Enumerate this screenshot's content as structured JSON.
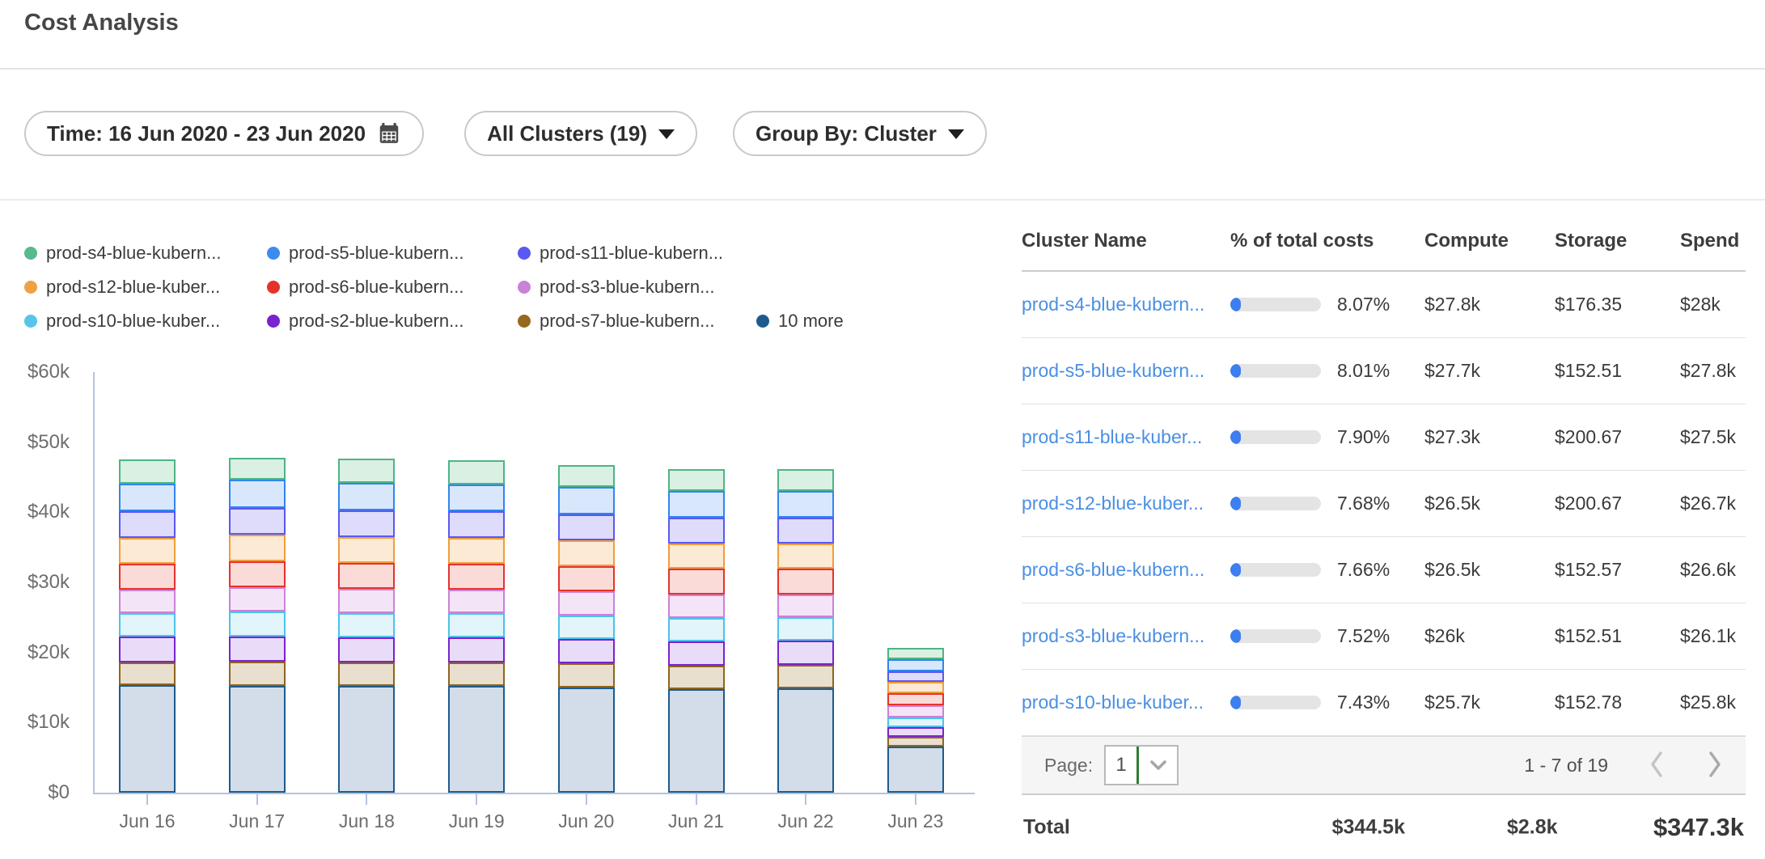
{
  "title": "Cost Analysis",
  "filters": {
    "time": "Time: 16 Jun 2020 - 23 Jun 2020",
    "clusters": "All Clusters (19)",
    "group_by": "Group By: Cluster"
  },
  "legend": {
    "rows": [
      [
        {
          "label": "prod-s4-blue-kubern...",
          "color": "#57b98e"
        },
        {
          "label": "prod-s5-blue-kubern...",
          "color": "#3c8cf0"
        },
        {
          "label": "prod-s11-blue-kubern...",
          "color": "#5a58f2"
        }
      ],
      [
        {
          "label": "prod-s12-blue-kuber...",
          "color": "#eea243"
        },
        {
          "label": "prod-s6-blue-kubern...",
          "color": "#e5332c"
        },
        {
          "label": "prod-s3-blue-kubern...",
          "color": "#c982d8"
        }
      ],
      [
        {
          "label": "prod-s10-blue-kuber...",
          "color": "#58c4ea"
        },
        {
          "label": "prod-s2-blue-kubern...",
          "color": "#7a22cf"
        },
        {
          "label": "prod-s7-blue-kubern...",
          "color": "#95691e"
        },
        {
          "label": "10 more",
          "color": "#1d5b8e"
        }
      ]
    ]
  },
  "chart_data": {
    "type": "bar",
    "stacked": true,
    "title": "",
    "xlabel": "",
    "ylabel": "",
    "values_unit": "USD thousands",
    "ylim": [
      0,
      60000
    ],
    "grid": false,
    "legend_position": "top",
    "yticks": [
      {
        "label": "$0",
        "v": 0
      },
      {
        "label": "$10k",
        "v": 10
      },
      {
        "label": "$20k",
        "v": 20
      },
      {
        "label": "$30k",
        "v": 30
      },
      {
        "label": "$40k",
        "v": 40
      },
      {
        "label": "$50k",
        "v": 50
      },
      {
        "label": "$60k",
        "v": 60
      }
    ],
    "categories": [
      "Jun 16",
      "Jun 17",
      "Jun 18",
      "Jun 19",
      "Jun 20",
      "Jun 21",
      "Jun 22",
      "Jun 23"
    ],
    "series": [
      {
        "key": "10-more",
        "name": "10 more",
        "color": "#1d5b8e",
        "fill": "#d2dde9",
        "values": [
          15.3,
          15.2,
          15.2,
          15.2,
          15.0,
          14.8,
          14.9,
          6.6
        ]
      },
      {
        "key": "prod-s7",
        "name": "prod-s7-blue-kubern...",
        "color": "#8f6420",
        "fill": "#e8dfce",
        "values": [
          3.3,
          3.5,
          3.4,
          3.4,
          3.4,
          3.3,
          3.3,
          1.4
        ]
      },
      {
        "key": "prod-s2",
        "name": "prod-s2-blue-kubern...",
        "color": "#7a22cf",
        "fill": "#e9dcf8",
        "values": [
          3.7,
          3.6,
          3.6,
          3.6,
          3.5,
          3.5,
          3.5,
          1.35
        ]
      },
      {
        "key": "prod-s10",
        "name": "prod-s10-blue-kuber...",
        "color": "#4cc2ea",
        "fill": "#e1f5fb",
        "values": [
          3.3,
          3.5,
          3.4,
          3.4,
          3.4,
          3.3,
          3.3,
          1.4
        ]
      },
      {
        "key": "prod-s3",
        "name": "prod-s3-blue-kubern...",
        "color": "#c982d8",
        "fill": "#f4e4f8",
        "values": [
          3.4,
          3.5,
          3.5,
          3.4,
          3.4,
          3.4,
          3.3,
          1.7
        ]
      },
      {
        "key": "prod-s6",
        "name": "prod-s6-blue-kubern...",
        "color": "#e5332c",
        "fill": "#fadbd7",
        "values": [
          3.7,
          3.7,
          3.7,
          3.6,
          3.6,
          3.6,
          3.6,
          1.7
        ]
      },
      {
        "key": "prod-s12",
        "name": "prod-s12-blue-kuber...",
        "color": "#f09d3c",
        "fill": "#fcead4",
        "values": [
          3.7,
          3.8,
          3.7,
          3.7,
          3.7,
          3.6,
          3.6,
          1.6
        ]
      },
      {
        "key": "prod-s11",
        "name": "prod-s11-blue-kubern...",
        "color": "#5a58f2",
        "fill": "#dedcfa",
        "values": [
          3.8,
          3.8,
          3.8,
          3.8,
          3.7,
          3.7,
          3.7,
          1.6
        ]
      },
      {
        "key": "prod-s5",
        "name": "prod-s5-blue-kubern...",
        "color": "#2f86f0",
        "fill": "#d9e7fc",
        "values": [
          3.9,
          4.0,
          3.9,
          3.9,
          3.9,
          3.8,
          3.8,
          1.7
        ]
      },
      {
        "key": "prod-s4",
        "name": "prod-s4-blue-kubern...",
        "color": "#4db584",
        "fill": "#d9f0e3",
        "values": [
          3.4,
          3.2,
          3.4,
          3.4,
          3.1,
          3.2,
          3.2,
          1.6
        ]
      }
    ]
  },
  "table": {
    "columns": [
      "Cluster Name",
      "% of total costs",
      "Compute",
      "Storage",
      "Spend"
    ],
    "rows": [
      {
        "name": "prod-s4-blue-kubern...",
        "pct": "8.07%",
        "compute": "$27.8k",
        "storage": "$176.35",
        "spend": "$28k"
      },
      {
        "name": "prod-s5-blue-kubern...",
        "pct": "8.01%",
        "compute": "$27.7k",
        "storage": "$152.51",
        "spend": "$27.8k"
      },
      {
        "name": "prod-s11-blue-kuber...",
        "pct": "7.90%",
        "compute": "$27.3k",
        "storage": "$200.67",
        "spend": "$27.5k"
      },
      {
        "name": "prod-s12-blue-kuber...",
        "pct": "7.68%",
        "compute": "$26.5k",
        "storage": "$200.67",
        "spend": "$26.7k"
      },
      {
        "name": "prod-s6-blue-kubern...",
        "pct": "7.66%",
        "compute": "$26.5k",
        "storage": "$152.57",
        "spend": "$26.6k"
      },
      {
        "name": "prod-s3-blue-kubern...",
        "pct": "7.52%",
        "compute": "$26k",
        "storage": "$152.51",
        "spend": "$26.1k"
      },
      {
        "name": "prod-s10-blue-kuber...",
        "pct": "7.43%",
        "compute": "$25.7k",
        "storage": "$152.78",
        "spend": "$25.8k"
      }
    ],
    "pagination": {
      "label": "Page:",
      "page": "1",
      "range": "1 - 7 of 19"
    },
    "total": {
      "label": "Total",
      "compute": "$344.5k",
      "storage": "$2.8k",
      "spend": "$347.3k"
    }
  },
  "colors": {
    "link": "#4a8fe2",
    "pct_bar_fill": "#3d7ef0",
    "pct_bar_track": "#e4e4e4",
    "axis": "#b5c2e0",
    "page_select_caret": "#2e7d32"
  }
}
